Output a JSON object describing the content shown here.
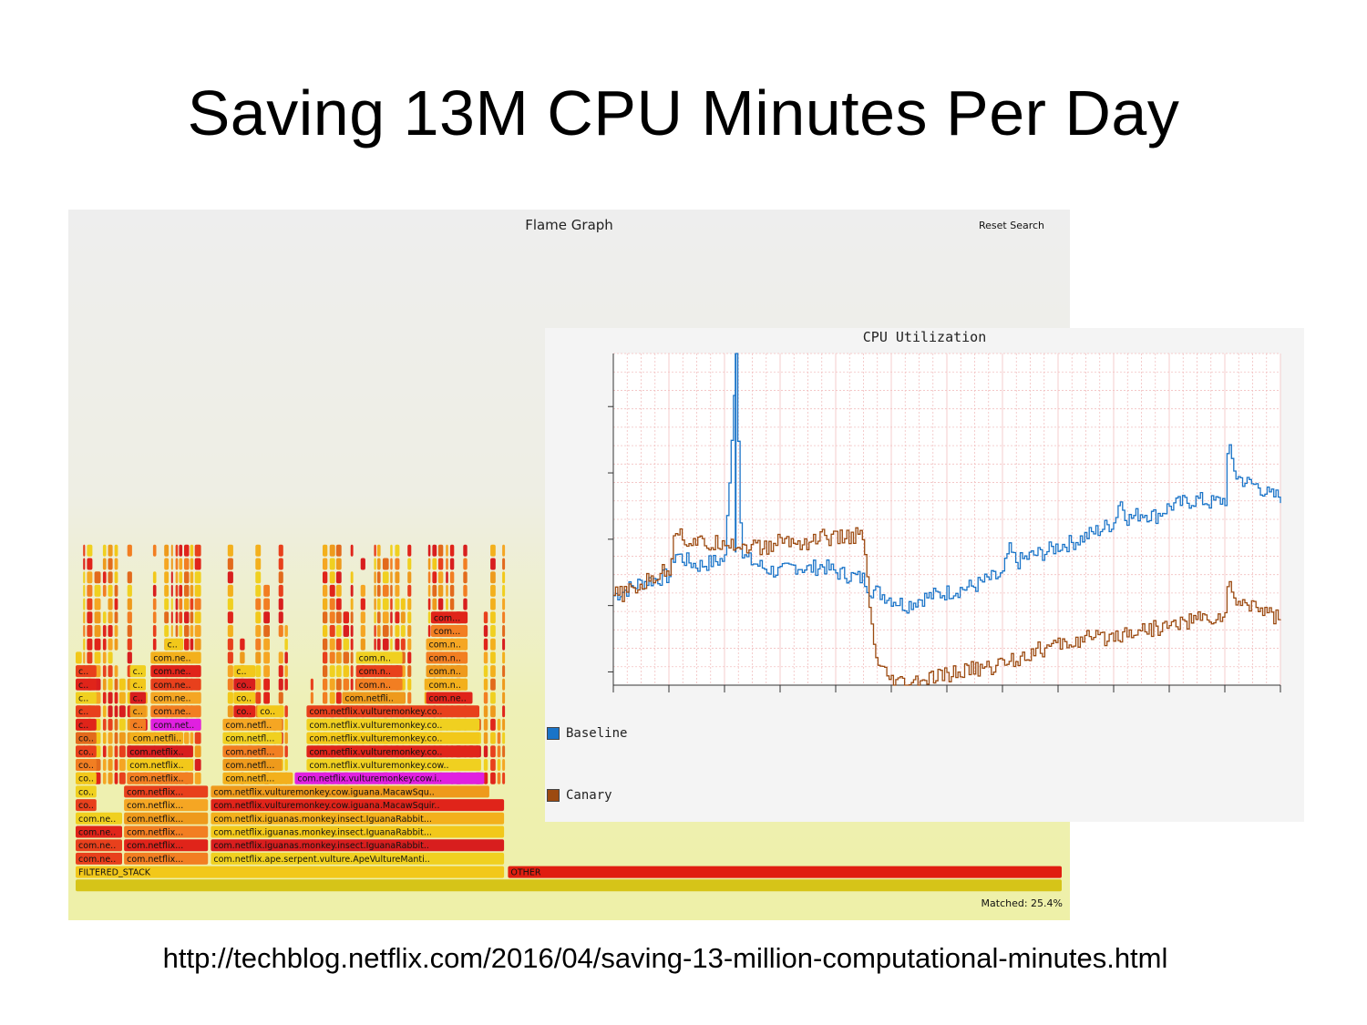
{
  "slide": {
    "title": "Saving 13M CPU Minutes Per Day",
    "source_url": "http://techblog.netflix.com/2016/04/saving-13-million-computational-minutes.html"
  },
  "flame_graph": {
    "title": "Flame Graph",
    "reset_label": "Reset Search",
    "matched_label": "Matched: 25.4%",
    "colors": {
      "hot": [
        "#e8401c",
        "#f27e22",
        "#ee9a1c",
        "#f2c81a",
        "#e0241a",
        "#f5a623",
        "#e26a1c",
        "#f0d020",
        "#d81e1e",
        "#f3b01c"
      ],
      "highlight": "#e020e0",
      "root": "#d6c418",
      "other": "#e01e10"
    },
    "frames": [
      {
        "level": 0,
        "start": 0.0,
        "end": 1.0,
        "label": "",
        "color": "root"
      },
      {
        "level": 1,
        "start": 0.0,
        "end": 0.435,
        "label": "FILTERED_STACK",
        "color": 3
      },
      {
        "level": 1,
        "start": 0.438,
        "end": 1.0,
        "label": "OTHER",
        "color": "other"
      },
      {
        "level": 2,
        "start": 0.0,
        "end": 0.048,
        "label": "com.ne..",
        "color": 0
      },
      {
        "level": 2,
        "start": 0.049,
        "end": 0.135,
        "label": "com.netflix...",
        "color": 1
      },
      {
        "level": 2,
        "start": 0.137,
        "end": 0.435,
        "label": "com.netflix.ape.serpent.vulture.ApeVultureManti..",
        "color": 7
      },
      {
        "level": 3,
        "start": 0.0,
        "end": 0.048,
        "label": "com.ne..",
        "color": 0
      },
      {
        "level": 3,
        "start": 0.049,
        "end": 0.135,
        "label": "com.netflix...",
        "color": 4
      },
      {
        "level": 3,
        "start": 0.137,
        "end": 0.435,
        "label": "com.netflix.iguanas.monkey.insect.IguanaRabbit..",
        "color": 8
      },
      {
        "level": 4,
        "start": 0.0,
        "end": 0.048,
        "label": "com.ne..",
        "color": 4
      },
      {
        "level": 4,
        "start": 0.049,
        "end": 0.135,
        "label": "com.netflix...",
        "color": 1
      },
      {
        "level": 4,
        "start": 0.137,
        "end": 0.435,
        "label": "com.netflix.iguanas.monkey.insect.IguanaRabbit...",
        "color": 3
      },
      {
        "level": 5,
        "start": 0.0,
        "end": 0.048,
        "label": "com.ne..",
        "color": 7
      },
      {
        "level": 5,
        "start": 0.049,
        "end": 0.135,
        "label": "com.netflix...",
        "color": 2
      },
      {
        "level": 5,
        "start": 0.137,
        "end": 0.435,
        "label": "com.netflix.iguanas.monkey.insect.IguanaRabbit...",
        "color": 9
      },
      {
        "level": 6,
        "start": 0.0,
        "end": 0.022,
        "label": "co..",
        "color": 0
      },
      {
        "level": 6,
        "start": 0.049,
        "end": 0.135,
        "label": "com.netflix...",
        "color": 5
      },
      {
        "level": 6,
        "start": 0.137,
        "end": 0.435,
        "label": "com.netflix.vulturemonkey.cow.iguana.MacawSquir..",
        "color": 4
      },
      {
        "level": 7,
        "start": 0.0,
        "end": 0.022,
        "label": "co..",
        "color": 7
      },
      {
        "level": 7,
        "start": 0.049,
        "end": 0.135,
        "label": "com.netflix...",
        "color": 0
      },
      {
        "level": 7,
        "start": 0.137,
        "end": 0.42,
        "label": "com.netflix.vulturemonkey.cow.iguana.MacawSqu..",
        "color": 2
      },
      {
        "level": 8,
        "start": 0.0,
        "end": 0.022,
        "label": "co..",
        "color": 3
      },
      {
        "level": 8,
        "start": 0.052,
        "end": 0.12,
        "label": "com.netflix..",
        "color": 1
      },
      {
        "level": 8,
        "start": 0.149,
        "end": 0.221,
        "label": "com.netfl...",
        "color": 9
      },
      {
        "level": 8,
        "start": 0.222,
        "end": 0.415,
        "label": "com.netflix.vulturemonkey.cow.i..",
        "color": "highlight"
      },
      {
        "level": 9,
        "start": 0.0,
        "end": 0.022,
        "label": "co..",
        "color": 1
      },
      {
        "level": 9,
        "start": 0.052,
        "end": 0.12,
        "label": "com.netflix..",
        "color": 3
      },
      {
        "level": 9,
        "start": 0.149,
        "end": 0.21,
        "label": "com.netfl...",
        "color": 2
      },
      {
        "level": 9,
        "start": 0.234,
        "end": 0.41,
        "label": "com.netflix.vulturemonkey.cow..",
        "color": 7
      },
      {
        "level": 10,
        "start": 0.0,
        "end": 0.022,
        "label": "co..",
        "color": 0
      },
      {
        "level": 10,
        "start": 0.052,
        "end": 0.12,
        "label": "com.netflix..",
        "color": 8
      },
      {
        "level": 10,
        "start": 0.149,
        "end": 0.21,
        "label": "com.netfl...",
        "color": 1
      },
      {
        "level": 10,
        "start": 0.234,
        "end": 0.41,
        "label": "com.netflix.vulturemonkey.co..",
        "color": 4
      },
      {
        "level": 11,
        "start": 0.0,
        "end": 0.022,
        "label": "co..",
        "color": 6
      },
      {
        "level": 11,
        "start": 0.055,
        "end": 0.11,
        "label": "com.netfli..",
        "color": 9
      },
      {
        "level": 11,
        "start": 0.149,
        "end": 0.21,
        "label": "com.netfl...",
        "color": 7
      },
      {
        "level": 11,
        "start": 0.234,
        "end": 0.41,
        "label": "com.netflix.vulturemonkey.co..",
        "color": 3
      },
      {
        "level": 12,
        "start": 0.0,
        "end": 0.022,
        "label": "c..",
        "color": 4
      },
      {
        "level": 12,
        "start": 0.055,
        "end": 0.072,
        "label": "c..",
        "color": 1
      },
      {
        "level": 12,
        "start": 0.076,
        "end": 0.128,
        "label": "com.net..",
        "color": "highlight"
      },
      {
        "level": 12,
        "start": 0.149,
        "end": 0.21,
        "label": "com.netfl..",
        "color": 5
      },
      {
        "level": 12,
        "start": 0.234,
        "end": 0.41,
        "label": "com.netflix.vulturemonkey.co..",
        "color": 7
      },
      {
        "level": 13,
        "start": 0.0,
        "end": 0.022,
        "label": "c..",
        "color": 0
      },
      {
        "level": 13,
        "start": 0.055,
        "end": 0.072,
        "label": "c..",
        "color": 2
      },
      {
        "level": 13,
        "start": 0.076,
        "end": 0.128,
        "label": "com.ne..",
        "color": 1
      },
      {
        "level": 13,
        "start": 0.16,
        "end": 0.183,
        "label": "co..",
        "color": 4
      },
      {
        "level": 13,
        "start": 0.184,
        "end": 0.212,
        "label": "co..",
        "color": 3
      },
      {
        "level": 13,
        "start": 0.234,
        "end": 0.41,
        "label": "com.netflix.vulturemonkey.co..",
        "color": 0
      },
      {
        "level": 14,
        "start": 0.0,
        "end": 0.022,
        "label": "c..",
        "color": 7
      },
      {
        "level": 14,
        "start": 0.055,
        "end": 0.072,
        "label": "c..",
        "color": 8
      },
      {
        "level": 14,
        "start": 0.076,
        "end": 0.128,
        "label": "com.ne..",
        "color": 5
      },
      {
        "level": 14,
        "start": 0.16,
        "end": 0.183,
        "label": "co..",
        "color": 3
      },
      {
        "level": 14,
        "start": 0.27,
        "end": 0.335,
        "label": "com.netfli..",
        "color": 2
      },
      {
        "level": 14,
        "start": 0.355,
        "end": 0.403,
        "label": "com.ne..",
        "color": 4
      },
      {
        "level": 15,
        "start": 0.0,
        "end": 0.022,
        "label": "c..",
        "color": 4
      },
      {
        "level": 15,
        "start": 0.055,
        "end": 0.072,
        "label": "c..",
        "color": 3
      },
      {
        "level": 15,
        "start": 0.076,
        "end": 0.128,
        "label": "com.ne..",
        "color": 0
      },
      {
        "level": 15,
        "start": 0.16,
        "end": 0.183,
        "label": "co..",
        "color": 8
      },
      {
        "level": 15,
        "start": 0.284,
        "end": 0.332,
        "label": "com.n..",
        "color": 1
      },
      {
        "level": 15,
        "start": 0.355,
        "end": 0.398,
        "label": "com.n..",
        "color": 9
      },
      {
        "level": 16,
        "start": 0.0,
        "end": 0.022,
        "label": "c..",
        "color": 0
      },
      {
        "level": 16,
        "start": 0.055,
        "end": 0.072,
        "label": "c..",
        "color": 7
      },
      {
        "level": 16,
        "start": 0.076,
        "end": 0.128,
        "label": "com.ne..",
        "color": 4
      },
      {
        "level": 16,
        "start": 0.16,
        "end": 0.183,
        "label": "c..",
        "color": 3
      },
      {
        "level": 16,
        "start": 0.284,
        "end": 0.332,
        "label": "com.n..",
        "color": 0
      },
      {
        "level": 16,
        "start": 0.355,
        "end": 0.398,
        "label": "com.n..",
        "color": 2
      },
      {
        "level": 17,
        "start": 0.076,
        "end": 0.128,
        "label": "com.ne..",
        "color": 9
      },
      {
        "level": 17,
        "start": 0.284,
        "end": 0.332,
        "label": "com.n..",
        "color": 7
      },
      {
        "level": 17,
        "start": 0.355,
        "end": 0.398,
        "label": "com.n..",
        "color": 1
      },
      {
        "level": 18,
        "start": 0.09,
        "end": 0.11,
        "label": "c..",
        "color": 3
      },
      {
        "level": 18,
        "start": 0.355,
        "end": 0.398,
        "label": "com.n..",
        "color": 5
      },
      {
        "level": 19,
        "start": 0.36,
        "end": 0.398,
        "label": "com...",
        "color": 1
      },
      {
        "level": 20,
        "start": 0.36,
        "end": 0.398,
        "label": "com...",
        "color": 4
      }
    ],
    "spikes": [
      {
        "start": 0.0,
        "end": 0.13,
        "depth": 46,
        "seed": 3
      },
      {
        "start": 0.154,
        "end": 0.215,
        "depth": 35,
        "seed": 11
      },
      {
        "start": 0.238,
        "end": 0.34,
        "depth": 42,
        "seed": 17
      },
      {
        "start": 0.35,
        "end": 0.435,
        "depth": 40,
        "seed": 29
      }
    ]
  },
  "cpu_chart": {
    "title": "CPU Utilization",
    "legend": [
      {
        "name": "Baseline",
        "color": "#1a74c8"
      },
      {
        "name": "Canary",
        "color": "#9c4a10"
      }
    ],
    "chart_data": {
      "type": "line",
      "title": "CPU Utilization",
      "xlabel": "",
      "ylabel": "",
      "x_range": [
        0,
        12
      ],
      "ylim": [
        0,
        100
      ],
      "x_tick_count": 13,
      "y_ticks": [
        4,
        24,
        44,
        64,
        84
      ],
      "series": [
        {
          "name": "Baseline",
          "color": "#1a74c8",
          "x": [
            0,
            0.25,
            0.5,
            0.75,
            1.0,
            1.1,
            1.25,
            1.5,
            1.75,
            2.0,
            2.2,
            2.3,
            2.5,
            2.75,
            3.0,
            3.25,
            3.5,
            3.75,
            4.0,
            4.25,
            4.5,
            4.6,
            4.75,
            5.0,
            5.25,
            5.5,
            5.75,
            6.0,
            6.25,
            6.5,
            6.75,
            7.0,
            7.1,
            7.25,
            7.5,
            7.75,
            8.0,
            8.25,
            8.5,
            8.75,
            9.0,
            9.1,
            9.25,
            9.5,
            9.75,
            10.0,
            10.25,
            10.5,
            10.75,
            11.0,
            11.05,
            11.2,
            11.4,
            11.6,
            11.8,
            12.0
          ],
          "values": [
            27,
            29,
            31,
            32,
            33,
            40,
            38,
            36,
            37,
            38,
            100,
            39,
            37,
            35,
            34,
            36,
            35,
            36,
            34,
            33,
            32,
            29,
            28,
            26,
            24,
            26,
            27,
            28,
            29,
            30,
            32,
            33,
            41,
            37,
            39,
            40,
            42,
            43,
            45,
            47,
            49,
            56,
            50,
            52,
            51,
            54,
            55,
            56,
            55,
            56,
            72,
            63,
            61,
            60,
            57,
            57
          ]
        },
        {
          "name": "Canary",
          "color": "#9c4a10",
          "x": [
            0,
            0.25,
            0.5,
            0.75,
            1.0,
            1.1,
            1.25,
            1.5,
            1.75,
            2.0,
            2.2,
            2.5,
            2.75,
            3.0,
            3.25,
            3.5,
            3.75,
            4.0,
            4.25,
            4.4,
            4.5,
            4.6,
            4.75,
            5.0,
            5.25,
            5.5,
            5.75,
            6.0,
            6.25,
            6.5,
            6.75,
            7.0,
            7.25,
            7.5,
            7.75,
            8.0,
            8.25,
            8.5,
            8.75,
            9.0,
            9.25,
            9.5,
            9.75,
            10.0,
            10.25,
            10.5,
            10.75,
            11.0,
            11.05,
            11.25,
            11.5,
            11.75,
            12.0
          ],
          "values": [
            27,
            28,
            30,
            33,
            35,
            48,
            44,
            43,
            42,
            44,
            42,
            42,
            41,
            44,
            43,
            43,
            45,
            44,
            45,
            45,
            44,
            22,
            5,
            1,
            0,
            1,
            2,
            3,
            4,
            5,
            5,
            7,
            8,
            10,
            11,
            12,
            13,
            14,
            14,
            15,
            16,
            17,
            17,
            18,
            19,
            20,
            20,
            21,
            30,
            24,
            25,
            22,
            20
          ]
        }
      ]
    }
  }
}
